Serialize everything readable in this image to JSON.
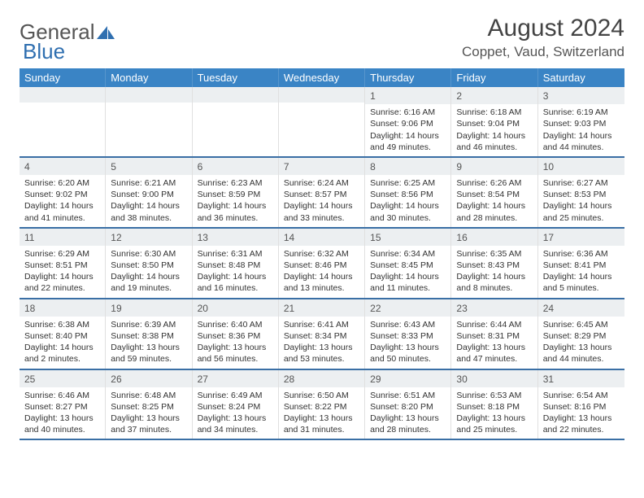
{
  "logo": {
    "text1": "General",
    "text2": "Blue"
  },
  "title": "August 2024",
  "location": "Coppet, Vaud, Switzerland",
  "colors": {
    "header_bg": "#3a84c5",
    "header_text": "#ffffff",
    "daynum_bg": "#eceff1",
    "border": "#3a6fa5",
    "text": "#333333"
  },
  "dayNames": [
    "Sunday",
    "Monday",
    "Tuesday",
    "Wednesday",
    "Thursday",
    "Friday",
    "Saturday"
  ],
  "weeks": [
    [
      {
        "n": "",
        "sr": "",
        "ss": "",
        "dl": ""
      },
      {
        "n": "",
        "sr": "",
        "ss": "",
        "dl": ""
      },
      {
        "n": "",
        "sr": "",
        "ss": "",
        "dl": ""
      },
      {
        "n": "",
        "sr": "",
        "ss": "",
        "dl": ""
      },
      {
        "n": "1",
        "sr": "Sunrise: 6:16 AM",
        "ss": "Sunset: 9:06 PM",
        "dl": "Daylight: 14 hours and 49 minutes."
      },
      {
        "n": "2",
        "sr": "Sunrise: 6:18 AM",
        "ss": "Sunset: 9:04 PM",
        "dl": "Daylight: 14 hours and 46 minutes."
      },
      {
        "n": "3",
        "sr": "Sunrise: 6:19 AM",
        "ss": "Sunset: 9:03 PM",
        "dl": "Daylight: 14 hours and 44 minutes."
      }
    ],
    [
      {
        "n": "4",
        "sr": "Sunrise: 6:20 AM",
        "ss": "Sunset: 9:02 PM",
        "dl": "Daylight: 14 hours and 41 minutes."
      },
      {
        "n": "5",
        "sr": "Sunrise: 6:21 AM",
        "ss": "Sunset: 9:00 PM",
        "dl": "Daylight: 14 hours and 38 minutes."
      },
      {
        "n": "6",
        "sr": "Sunrise: 6:23 AM",
        "ss": "Sunset: 8:59 PM",
        "dl": "Daylight: 14 hours and 36 minutes."
      },
      {
        "n": "7",
        "sr": "Sunrise: 6:24 AM",
        "ss": "Sunset: 8:57 PM",
        "dl": "Daylight: 14 hours and 33 minutes."
      },
      {
        "n": "8",
        "sr": "Sunrise: 6:25 AM",
        "ss": "Sunset: 8:56 PM",
        "dl": "Daylight: 14 hours and 30 minutes."
      },
      {
        "n": "9",
        "sr": "Sunrise: 6:26 AM",
        "ss": "Sunset: 8:54 PM",
        "dl": "Daylight: 14 hours and 28 minutes."
      },
      {
        "n": "10",
        "sr": "Sunrise: 6:27 AM",
        "ss": "Sunset: 8:53 PM",
        "dl": "Daylight: 14 hours and 25 minutes."
      }
    ],
    [
      {
        "n": "11",
        "sr": "Sunrise: 6:29 AM",
        "ss": "Sunset: 8:51 PM",
        "dl": "Daylight: 14 hours and 22 minutes."
      },
      {
        "n": "12",
        "sr": "Sunrise: 6:30 AM",
        "ss": "Sunset: 8:50 PM",
        "dl": "Daylight: 14 hours and 19 minutes."
      },
      {
        "n": "13",
        "sr": "Sunrise: 6:31 AM",
        "ss": "Sunset: 8:48 PM",
        "dl": "Daylight: 14 hours and 16 minutes."
      },
      {
        "n": "14",
        "sr": "Sunrise: 6:32 AM",
        "ss": "Sunset: 8:46 PM",
        "dl": "Daylight: 14 hours and 13 minutes."
      },
      {
        "n": "15",
        "sr": "Sunrise: 6:34 AM",
        "ss": "Sunset: 8:45 PM",
        "dl": "Daylight: 14 hours and 11 minutes."
      },
      {
        "n": "16",
        "sr": "Sunrise: 6:35 AM",
        "ss": "Sunset: 8:43 PM",
        "dl": "Daylight: 14 hours and 8 minutes."
      },
      {
        "n": "17",
        "sr": "Sunrise: 6:36 AM",
        "ss": "Sunset: 8:41 PM",
        "dl": "Daylight: 14 hours and 5 minutes."
      }
    ],
    [
      {
        "n": "18",
        "sr": "Sunrise: 6:38 AM",
        "ss": "Sunset: 8:40 PM",
        "dl": "Daylight: 14 hours and 2 minutes."
      },
      {
        "n": "19",
        "sr": "Sunrise: 6:39 AM",
        "ss": "Sunset: 8:38 PM",
        "dl": "Daylight: 13 hours and 59 minutes."
      },
      {
        "n": "20",
        "sr": "Sunrise: 6:40 AM",
        "ss": "Sunset: 8:36 PM",
        "dl": "Daylight: 13 hours and 56 minutes."
      },
      {
        "n": "21",
        "sr": "Sunrise: 6:41 AM",
        "ss": "Sunset: 8:34 PM",
        "dl": "Daylight: 13 hours and 53 minutes."
      },
      {
        "n": "22",
        "sr": "Sunrise: 6:43 AM",
        "ss": "Sunset: 8:33 PM",
        "dl": "Daylight: 13 hours and 50 minutes."
      },
      {
        "n": "23",
        "sr": "Sunrise: 6:44 AM",
        "ss": "Sunset: 8:31 PM",
        "dl": "Daylight: 13 hours and 47 minutes."
      },
      {
        "n": "24",
        "sr": "Sunrise: 6:45 AM",
        "ss": "Sunset: 8:29 PM",
        "dl": "Daylight: 13 hours and 44 minutes."
      }
    ],
    [
      {
        "n": "25",
        "sr": "Sunrise: 6:46 AM",
        "ss": "Sunset: 8:27 PM",
        "dl": "Daylight: 13 hours and 40 minutes."
      },
      {
        "n": "26",
        "sr": "Sunrise: 6:48 AM",
        "ss": "Sunset: 8:25 PM",
        "dl": "Daylight: 13 hours and 37 minutes."
      },
      {
        "n": "27",
        "sr": "Sunrise: 6:49 AM",
        "ss": "Sunset: 8:24 PM",
        "dl": "Daylight: 13 hours and 34 minutes."
      },
      {
        "n": "28",
        "sr": "Sunrise: 6:50 AM",
        "ss": "Sunset: 8:22 PM",
        "dl": "Daylight: 13 hours and 31 minutes."
      },
      {
        "n": "29",
        "sr": "Sunrise: 6:51 AM",
        "ss": "Sunset: 8:20 PM",
        "dl": "Daylight: 13 hours and 28 minutes."
      },
      {
        "n": "30",
        "sr": "Sunrise: 6:53 AM",
        "ss": "Sunset: 8:18 PM",
        "dl": "Daylight: 13 hours and 25 minutes."
      },
      {
        "n": "31",
        "sr": "Sunrise: 6:54 AM",
        "ss": "Sunset: 8:16 PM",
        "dl": "Daylight: 13 hours and 22 minutes."
      }
    ]
  ]
}
